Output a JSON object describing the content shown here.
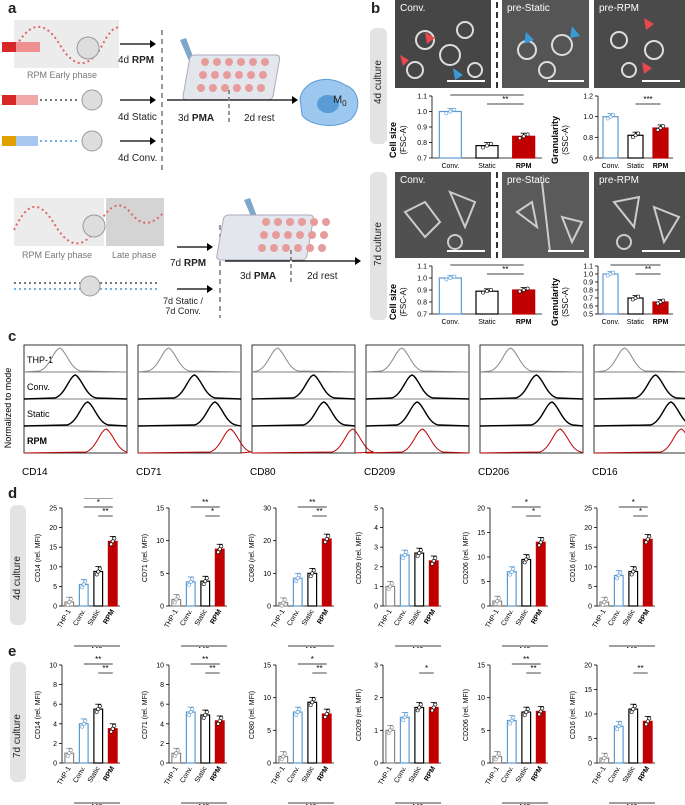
{
  "panels": {
    "a": "a",
    "b": "b",
    "c": "c",
    "d": "d",
    "e": "e"
  },
  "panel_a": {
    "rpm_early_phase": "RPM Early phase",
    "late_phase": "Late phase",
    "label_4d_rpm_prefix": "4d ",
    "label_rpm": "RPM",
    "label_4d_static": "4d Static",
    "label_4d_conv": "4d Conv.",
    "label_3d_prefix": "3d ",
    "label_pma": "PMA",
    "label_2d_rest": "2d rest",
    "label_m0": "M",
    "label_m0_sub": "0",
    "label_7d_prefix": "7d ",
    "label_7d_static_line1": "7d Static /",
    "label_7d_static_line2": "7d Conv."
  },
  "panel_b": {
    "culture_4d": "4d culture",
    "culture_7d": "7d culture",
    "img_conv": "Conv.",
    "img_prestatic": "pre-Static",
    "img_prerpm": "pre-RPM",
    "cell_size": "Cell size",
    "cell_size_sub": "(FSC-A)",
    "granularity": "Granularity",
    "granularity_sub": "(SSC-A)",
    "cat_conv": "Conv.",
    "cat_static": "Static",
    "cat_rpm": "RPM"
  },
  "panel_c": {
    "ylabel": "Normalized to mode",
    "rows": [
      "THP-1",
      "Conv.",
      "Static",
      "RPM"
    ],
    "markers": [
      "CD14",
      "CD71",
      "CD80",
      "CD209",
      "CD206",
      "CD16"
    ]
  },
  "panel_de": {
    "culture_4d": "4d culture",
    "culture_7d": "7d culture",
    "cats": [
      "THP-1",
      "Conv.",
      "Static",
      "RPM"
    ],
    "m0": "M",
    "m0_sub": "0"
  },
  "colors": {
    "conv": "#5b9bd5",
    "rpm": "#c00000",
    "static": "#000000",
    "thp": "#888888",
    "red_arrow": "#e8484e",
    "blue_arrow": "#3a9ad9"
  },
  "chart_data": [
    {
      "type": "bar",
      "id": "b-4d-size",
      "title": "Cell size (FSC-A) 4d",
      "categories": [
        "Conv.",
        "Static",
        "RPM"
      ],
      "values": [
        1.0,
        0.78,
        0.84
      ],
      "ylim": [
        0.7,
        1.1
      ],
      "ticks": [
        "0.7",
        "0.8",
        "0.9",
        "1.0",
        "1.1"
      ],
      "sig": [
        "**",
        "**",
        "*"
      ]
    },
    {
      "type": "bar",
      "id": "b-4d-gran",
      "title": "Granularity (SSC-A) 4d",
      "categories": [
        "Conv.",
        "Static",
        "RPM"
      ],
      "values": [
        1.0,
        0.82,
        0.89
      ],
      "ylim": [
        0.6,
        1.2
      ],
      "ticks": [
        "0.6",
        "0.8",
        "1.0",
        "1.2"
      ],
      "sig": [
        "***"
      ]
    },
    {
      "type": "bar",
      "id": "b-7d-size",
      "title": "Cell size (FSC-A) 7d",
      "categories": [
        "Conv.",
        "Static",
        "RPM"
      ],
      "values": [
        1.0,
        0.89,
        0.9
      ],
      "ylim": [
        0.7,
        1.1
      ],
      "ticks": [
        "0.7",
        "0.8",
        "0.9",
        "1.0",
        "1.1"
      ],
      "sig": [
        "**",
        "**"
      ]
    },
    {
      "type": "bar",
      "id": "b-7d-gran",
      "title": "Granularity (SSC-A) 7d",
      "categories": [
        "Conv.",
        "Static",
        "RPM"
      ],
      "values": [
        1.0,
        0.7,
        0.65
      ],
      "ylim": [
        0.5,
        1.1
      ],
      "ticks": [
        "0.5",
        "0.6",
        "0.7",
        "0.8",
        "0.9",
        "1.0",
        "1.1"
      ],
      "sig": [
        "**",
        "**",
        "**"
      ]
    },
    {
      "type": "bar",
      "id": "d-cd14",
      "ylabel": "CD14 (rel. MFI)",
      "categories": [
        "THP-1",
        "Conv.",
        "Static",
        "RPM"
      ],
      "values": [
        1,
        5.5,
        8.8,
        16.5
      ],
      "ylim": [
        0,
        25
      ],
      "ticks": [
        "0",
        "5",
        "10",
        "15",
        "20",
        "25"
      ],
      "sig": [
        "**",
        "*",
        "**"
      ]
    },
    {
      "type": "bar",
      "id": "d-cd71",
      "ylabel": "CD71 (rel. MFI)",
      "categories": [
        "THP-1",
        "Conv.",
        "Static",
        "RPM"
      ],
      "values": [
        1,
        3.7,
        3.8,
        8.7
      ],
      "ylim": [
        0,
        15
      ],
      "ticks": [
        "0",
        "5",
        "10",
        "15"
      ],
      "sig": [
        "*",
        "**"
      ]
    },
    {
      "type": "bar",
      "id": "d-cd80",
      "ylabel": "CD80 (rel. MFI)",
      "categories": [
        "THP-1",
        "Conv.",
        "Static",
        "RPM"
      ],
      "values": [
        1,
        8.5,
        10,
        20.5
      ],
      "ylim": [
        0,
        30
      ],
      "ticks": [
        "0",
        "10",
        "20",
        "30"
      ],
      "sig": [
        "**",
        "**"
      ]
    },
    {
      "type": "bar",
      "id": "d-cd209",
      "ylabel": "CD209 (rel. MFI)",
      "categories": [
        "THP-1",
        "Conv.",
        "Static",
        "RPM"
      ],
      "values": [
        1,
        2.6,
        2.7,
        2.3
      ],
      "ylim": [
        0,
        5
      ],
      "ticks": [
        "0",
        "1",
        "2",
        "3",
        "4",
        "5"
      ],
      "sig": []
    },
    {
      "type": "bar",
      "id": "d-cd206",
      "ylabel": "CD206 (rel. MFI)",
      "categories": [
        "THP-1",
        "Conv.",
        "Static",
        "RPM"
      ],
      "values": [
        1,
        7,
        9.5,
        13
      ],
      "ylim": [
        0,
        20
      ],
      "ticks": [
        "0",
        "5",
        "10",
        "15",
        "20"
      ],
      "sig": [
        "*",
        "*"
      ]
    },
    {
      "type": "bar",
      "id": "d-cd16",
      "ylabel": "CD16 (rel. MFI)",
      "categories": [
        "THP-1",
        "Conv.",
        "Static",
        "RPM"
      ],
      "values": [
        1,
        7.8,
        8.8,
        17
      ],
      "ylim": [
        0,
        25
      ],
      "ticks": [
        "0",
        "5",
        "10",
        "15",
        "20",
        "25"
      ],
      "sig": [
        "*",
        "*"
      ]
    },
    {
      "type": "bar",
      "id": "e-cd14",
      "ylabel": "CD14 (rel. MFI)",
      "categories": [
        "THP-1",
        "Conv.",
        "Static",
        "RPM"
      ],
      "values": [
        1,
        4,
        5.5,
        3.5
      ],
      "ylim": [
        0,
        10
      ],
      "ticks": [
        "0",
        "2",
        "4",
        "6",
        "8",
        "10"
      ],
      "sig": [
        "**",
        "**"
      ]
    },
    {
      "type": "bar",
      "id": "e-cd71",
      "ylabel": "CD71 (rel. MFI)",
      "categories": [
        "THP-1",
        "Conv.",
        "Static",
        "RPM"
      ],
      "values": [
        1,
        5.2,
        4.9,
        4.3
      ],
      "ylim": [
        0,
        10
      ],
      "ticks": [
        "0",
        "2",
        "4",
        "6",
        "8",
        "10"
      ],
      "sig": [
        "**",
        "**"
      ]
    },
    {
      "type": "bar",
      "id": "e-cd80",
      "ylabel": "CD80 (rel. MFI)",
      "categories": [
        "THP-1",
        "Conv.",
        "Static",
        "RPM"
      ],
      "values": [
        1,
        7.8,
        9.3,
        7.5
      ],
      "ylim": [
        0,
        15
      ],
      "ticks": [
        "0",
        "5",
        "10",
        "15"
      ],
      "sig": [
        "**",
        "*"
      ]
    },
    {
      "type": "bar",
      "id": "e-cd209",
      "ylabel": "CD209 (rel. MFI)",
      "categories": [
        "THP-1",
        "Conv.",
        "Static",
        "RPM"
      ],
      "values": [
        1,
        1.4,
        1.7,
        1.7
      ],
      "ylim": [
        0,
        3
      ],
      "ticks": [
        "0",
        "1",
        "2",
        "3"
      ],
      "sig": [
        "*"
      ]
    },
    {
      "type": "bar",
      "id": "e-cd206",
      "ylabel": "CD206 (rel. MFI)",
      "categories": [
        "THP-1",
        "Conv.",
        "Static",
        "RPM"
      ],
      "values": [
        1,
        6.5,
        7.8,
        7.9
      ],
      "ylim": [
        0,
        15
      ],
      "ticks": [
        "0",
        "5",
        "10",
        "15"
      ],
      "sig": [
        "**",
        "**"
      ]
    },
    {
      "type": "bar",
      "id": "e-cd16",
      "ylabel": "CD16 (rel. MFI)",
      "categories": [
        "THP-1",
        "Conv.",
        "Static",
        "RPM"
      ],
      "values": [
        1,
        7.5,
        11,
        8.5
      ],
      "ylim": [
        0,
        20
      ],
      "ticks": [
        "0",
        "5",
        "10",
        "15",
        "20"
      ],
      "sig": [
        "**"
      ]
    }
  ]
}
